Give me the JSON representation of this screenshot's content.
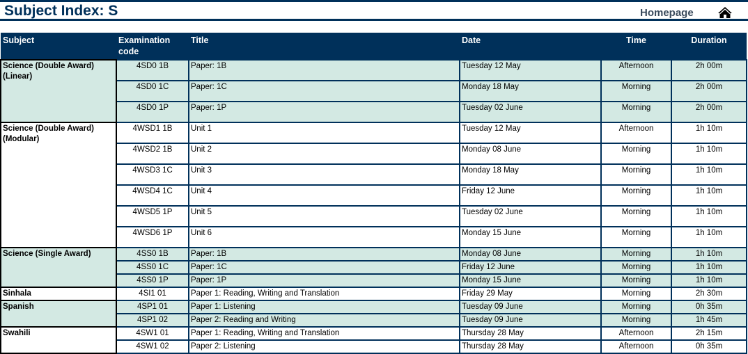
{
  "page": {
    "title": "Subject Index: S",
    "homepage_label": "Homepage",
    "home_icon": "home-icon"
  },
  "colors": {
    "navy": "#00305a",
    "row_tint": "#d3e9e3"
  },
  "table": {
    "headers": [
      "Subject",
      "Examination code",
      "Title",
      "Date",
      "Time",
      "Duration"
    ],
    "groups": [
      {
        "subject": "Science (Double Award) (Linear)",
        "shaded": true,
        "tall": true,
        "rows": [
          {
            "code": "4SD0 1B",
            "title": "Paper: 1B",
            "date": "Tuesday 12 May",
            "time": "Afternoon",
            "duration": "2h 00m"
          },
          {
            "code": "4SD0 1C",
            "title": "Paper: 1C",
            "date": "Monday 18 May",
            "time": "Morning",
            "duration": "2h 00m"
          },
          {
            "code": "4SD0 1P",
            "title": "Paper: 1P",
            "date": "Tuesday 02 June",
            "time": "Morning",
            "duration": "2h 00m"
          }
        ]
      },
      {
        "subject": "Science (Double Award) (Modular)",
        "shaded": false,
        "tall": true,
        "rows": [
          {
            "code": "4WSD1 1B",
            "title": "Unit 1",
            "date": "Tuesday 12 May",
            "time": "Afternoon",
            "duration": "1h 10m"
          },
          {
            "code": "4WSD2 1B",
            "title": "Unit 2",
            "date": "Monday 08 June",
            "time": "Morning",
            "duration": "1h 10m"
          },
          {
            "code": "4WSD3 1C",
            "title": "Unit 3",
            "date": "Monday 18 May",
            "time": "Morning",
            "duration": "1h 10m"
          },
          {
            "code": "4WSD4 1C",
            "title": "Unit 4",
            "date": "Friday 12 June",
            "time": "Morning",
            "duration": "1h 10m"
          },
          {
            "code": "4WSD5 1P",
            "title": "Unit 5",
            "date": "Tuesday 02 June",
            "time": "Morning",
            "duration": "1h 10m"
          },
          {
            "code": "4WSD6 1P",
            "title": "Unit 6",
            "date": "Monday 15 June",
            "time": "Morning",
            "duration": "1h 10m"
          }
        ]
      },
      {
        "subject": "Science (Single Award)",
        "shaded": true,
        "tall": false,
        "rows": [
          {
            "code": "4SS0 1B",
            "title": "Paper: 1B",
            "date": "Monday 08 June",
            "time": "Morning",
            "duration": "1h 10m"
          },
          {
            "code": "4SS0 1C",
            "title": "Paper: 1C",
            "date": "Friday 12 June",
            "time": "Morning",
            "duration": "1h 10m"
          },
          {
            "code": "4SS0 1P",
            "title": "Paper: 1P",
            "date": "Monday 15 June",
            "time": "Morning",
            "duration": "1h 10m"
          }
        ]
      },
      {
        "subject": "Sinhala",
        "shaded": false,
        "tall": false,
        "rows": [
          {
            "code": "4SI1 01",
            "title": "Paper 1: Reading, Writing and Translation",
            "date": "Friday 29 May",
            "time": "Morning",
            "duration": "2h 30m"
          }
        ]
      },
      {
        "subject": "Spanish",
        "shaded": true,
        "tall": false,
        "rows": [
          {
            "code": "4SP1 01",
            "title": "Paper 1: Listening",
            "date": "Tuesday 09 June",
            "time": "Morning",
            "duration": "0h 35m"
          },
          {
            "code": "4SP1 02",
            "title": "Paper 2: Reading and Writing",
            "date": "Tuesday 09 June",
            "time": "Morning",
            "duration": "1h 45m"
          }
        ]
      },
      {
        "subject": "Swahili",
        "shaded": false,
        "tall": false,
        "rows": [
          {
            "code": "4SW1 01",
            "title": "Paper 1: Reading, Writing and Translation",
            "date": "Thursday 28 May",
            "time": "Afternoon",
            "duration": "2h 15m"
          },
          {
            "code": "4SW1 02",
            "title": "Paper 2: Listening",
            "date": "Thursday 28 May",
            "time": "Afternoon",
            "duration": "0h 35m"
          }
        ]
      }
    ]
  }
}
